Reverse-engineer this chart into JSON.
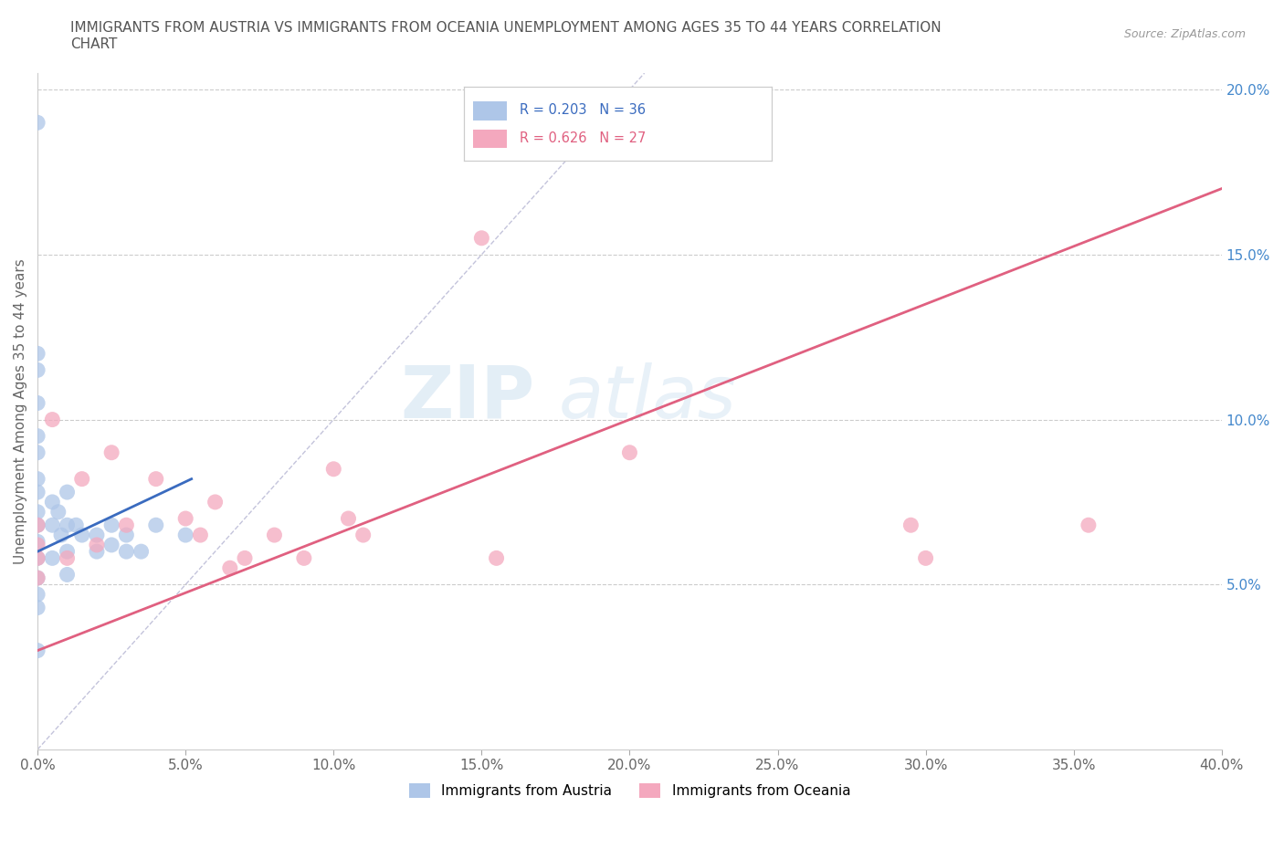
{
  "title": "IMMIGRANTS FROM AUSTRIA VS IMMIGRANTS FROM OCEANIA UNEMPLOYMENT AMONG AGES 35 TO 44 YEARS CORRELATION\nCHART",
  "source_text": "Source: ZipAtlas.com",
  "ylabel": "Unemployment Among Ages 35 to 44 years",
  "xlim": [
    0.0,
    0.4
  ],
  "ylim": [
    0.0,
    0.205
  ],
  "xticks": [
    0.0,
    0.05,
    0.1,
    0.15,
    0.2,
    0.25,
    0.3,
    0.35,
    0.4
  ],
  "yticks_right": [
    0.05,
    0.1,
    0.15,
    0.2
  ],
  "ytick_labels_right": [
    "5.0%",
    "10.0%",
    "15.0%",
    "20.0%"
  ],
  "xtick_labels": [
    "0.0%",
    "5.0%",
    "10.0%",
    "15.0%",
    "20.0%",
    "25.0%",
    "30.0%",
    "35.0%",
    "40.0%"
  ],
  "legend1_r": "0.203",
  "legend1_n": "36",
  "legend2_r": "0.626",
  "legend2_n": "27",
  "austria_color": "#aec6e8",
  "oceania_color": "#f4a8be",
  "austria_line_color": "#3a6bbf",
  "oceania_line_color": "#e06080",
  "watermark_zip": "ZIP",
  "watermark_atlas": "atlas",
  "austria_scatter_x": [
    0.0,
    0.0,
    0.0,
    0.0,
    0.0,
    0.0,
    0.0,
    0.0,
    0.0,
    0.0,
    0.0,
    0.0,
    0.0,
    0.0,
    0.0,
    0.005,
    0.005,
    0.005,
    0.007,
    0.008,
    0.01,
    0.01,
    0.01,
    0.01,
    0.013,
    0.015,
    0.02,
    0.02,
    0.025,
    0.025,
    0.03,
    0.03,
    0.035,
    0.04,
    0.05,
    0.0
  ],
  "austria_scatter_y": [
    0.19,
    0.12,
    0.115,
    0.105,
    0.095,
    0.09,
    0.082,
    0.078,
    0.072,
    0.068,
    0.063,
    0.058,
    0.052,
    0.047,
    0.043,
    0.075,
    0.068,
    0.058,
    0.072,
    0.065,
    0.078,
    0.068,
    0.06,
    0.053,
    0.068,
    0.065,
    0.065,
    0.06,
    0.062,
    0.068,
    0.065,
    0.06,
    0.06,
    0.068,
    0.065,
    0.03
  ],
  "oceania_scatter_x": [
    0.0,
    0.0,
    0.0,
    0.0,
    0.005,
    0.01,
    0.015,
    0.02,
    0.025,
    0.03,
    0.04,
    0.05,
    0.055,
    0.06,
    0.065,
    0.07,
    0.08,
    0.09,
    0.1,
    0.105,
    0.11,
    0.15,
    0.155,
    0.2,
    0.295,
    0.3,
    0.355
  ],
  "oceania_scatter_y": [
    0.068,
    0.062,
    0.058,
    0.052,
    0.1,
    0.058,
    0.082,
    0.062,
    0.09,
    0.068,
    0.082,
    0.07,
    0.065,
    0.075,
    0.055,
    0.058,
    0.065,
    0.058,
    0.085,
    0.07,
    0.065,
    0.155,
    0.058,
    0.09,
    0.068,
    0.058,
    0.068
  ],
  "austria_trendline_x": [
    0.0,
    0.052
  ],
  "austria_trendline_y": [
    0.06,
    0.082
  ],
  "oceania_trendline_x": [
    0.0,
    0.4
  ],
  "oceania_trendline_y": [
    0.03,
    0.17
  ],
  "diag_line_x": [
    0.0,
    0.205
  ],
  "diag_line_y": [
    0.0,
    0.205
  ]
}
